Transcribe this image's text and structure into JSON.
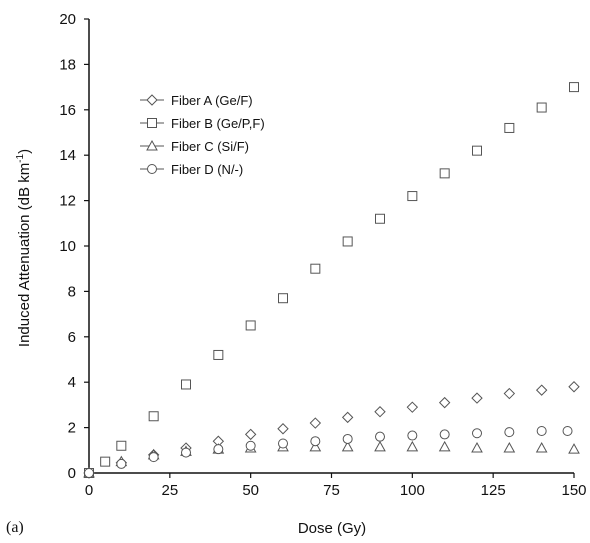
{
  "chart_data": {
    "type": "scatter",
    "title": "",
    "panel_label": "(a)",
    "xlabel": "Dose (Gy)",
    "ylabel_main": "Induced Attenuation (dB km",
    "ylabel_sup": "-1",
    "ylabel_close": ")",
    "xlim": [
      0,
      150
    ],
    "ylim": [
      0,
      20
    ],
    "xticks": [
      "0",
      "25",
      "50",
      "75",
      "100",
      "125",
      "150"
    ],
    "yticks": [
      "0",
      "2",
      "4",
      "6",
      "8",
      "10",
      "12",
      "14",
      "16",
      "18",
      "20"
    ],
    "grid": false,
    "legend_position": "upper-left",
    "colors": {
      "marker_stroke": "#555555",
      "axis": "#111111"
    },
    "series": [
      {
        "name": "Fiber A (Ge/F)",
        "marker": "diamond",
        "x": [
          0,
          10,
          20,
          30,
          40,
          50,
          60,
          70,
          80,
          90,
          100,
          110,
          120,
          130,
          140,
          150
        ],
        "y": [
          0,
          0.45,
          0.8,
          1.1,
          1.4,
          1.7,
          1.95,
          2.2,
          2.45,
          2.7,
          2.9,
          3.1,
          3.3,
          3.5,
          3.65,
          3.8
        ]
      },
      {
        "name": "Fiber B (Ge/P,F)",
        "marker": "square",
        "x": [
          0,
          5,
          10,
          20,
          30,
          40,
          50,
          60,
          70,
          80,
          90,
          100,
          110,
          120,
          130,
          140,
          150
        ],
        "y": [
          0,
          0.5,
          1.2,
          2.5,
          3.9,
          5.2,
          6.5,
          7.7,
          9.0,
          10.2,
          11.2,
          12.2,
          13.2,
          14.2,
          15.2,
          16.1,
          17.0
        ]
      },
      {
        "name": "Fiber C (Si/F)",
        "marker": "triangle",
        "x": [
          0,
          10,
          20,
          30,
          40,
          50,
          60,
          70,
          80,
          90,
          100,
          110,
          120,
          130,
          140,
          150
        ],
        "y": [
          0,
          0.5,
          0.8,
          0.95,
          1.05,
          1.1,
          1.15,
          1.15,
          1.15,
          1.15,
          1.15,
          1.15,
          1.1,
          1.1,
          1.1,
          1.05
        ]
      },
      {
        "name": "Fiber D (N/-)",
        "marker": "circle",
        "x": [
          0,
          10,
          20,
          30,
          40,
          50,
          60,
          70,
          80,
          90,
          100,
          110,
          120,
          130,
          140,
          148
        ],
        "y": [
          0,
          0.4,
          0.7,
          0.9,
          1.05,
          1.2,
          1.3,
          1.4,
          1.5,
          1.6,
          1.65,
          1.7,
          1.75,
          1.8,
          1.85,
          1.85
        ]
      }
    ]
  }
}
